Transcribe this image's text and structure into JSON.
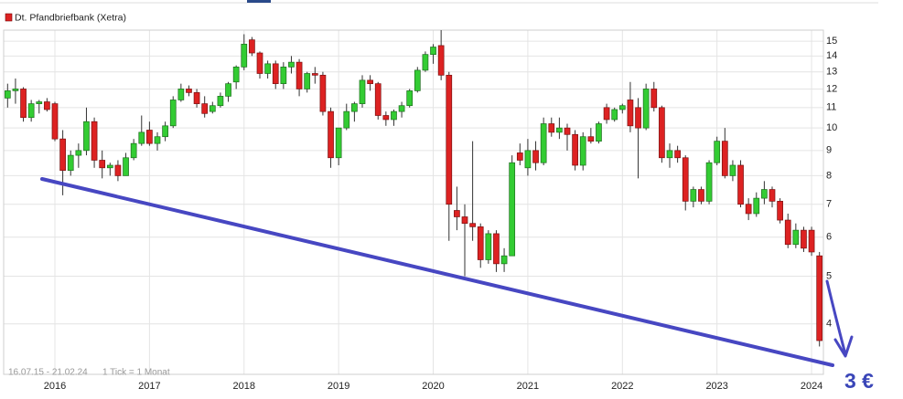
{
  "chart_data": {
    "type": "candlestick",
    "name": "Dt. Pfandbriefbank (Xetra)",
    "footnote_range": "16.07.15 - 21.02.24",
    "footnote_tick": "1 Tick = 1 Monat",
    "annotation": "3 €",
    "up_color": "#33cc33",
    "down_color": "#dd2222",
    "log_scale": true,
    "grid": true,
    "ylim": [
      3.16,
      15.8
    ],
    "yticks": [
      4,
      5,
      6,
      7,
      8,
      9,
      10,
      11,
      12,
      13,
      14,
      15
    ],
    "categories": [
      null,
      null,
      null,
      null,
      null,
      null,
      "2016",
      null,
      null,
      null,
      null,
      null,
      null,
      null,
      null,
      null,
      null,
      null,
      "2017",
      null,
      null,
      null,
      null,
      null,
      null,
      null,
      null,
      null,
      null,
      null,
      "2018",
      null,
      null,
      null,
      null,
      null,
      null,
      null,
      null,
      null,
      null,
      null,
      "2019",
      null,
      null,
      null,
      null,
      null,
      null,
      null,
      null,
      null,
      null,
      null,
      "2020",
      null,
      null,
      null,
      null,
      null,
      null,
      null,
      null,
      null,
      null,
      null,
      "2021",
      null,
      null,
      null,
      null,
      null,
      null,
      null,
      null,
      null,
      null,
      null,
      "2022",
      null,
      null,
      null,
      null,
      null,
      null,
      null,
      null,
      null,
      null,
      null,
      "2023",
      null,
      null,
      null,
      null,
      null,
      null,
      null,
      null,
      null,
      null,
      null,
      "2024",
      null
    ],
    "open": [
      11.5,
      11.9,
      12.0,
      10.5,
      11.2,
      11.3,
      11.2,
      9.5,
      8.2,
      8.8,
      9.0,
      10.3,
      8.6,
      8.3,
      8.4,
      8.0,
      8.7,
      9.3,
      9.9,
      9.3,
      9.6,
      10.1,
      11.4,
      12.0,
      11.8,
      11.2,
      10.8,
      11.1,
      11.6,
      12.4,
      13.3,
      15.1,
      14.2,
      12.9,
      13.5,
      12.3,
      13.3,
      13.6,
      12.0,
      12.9,
      12.8,
      10.8,
      8.7,
      10.0,
      10.8,
      11.2,
      12.5,
      12.3,
      10.6,
      10.4,
      10.8,
      11.1,
      11.9,
      13.1,
      14.1,
      14.7,
      12.8,
      6.8,
      6.6,
      6.4,
      6.3,
      5.4,
      6.1,
      5.3,
      5.5,
      8.9,
      8.3,
      9.0,
      8.5,
      10.2,
      9.8,
      10.0,
      9.7,
      8.4,
      9.6,
      9.4,
      11.0,
      10.4,
      10.9,
      11.4,
      11.0,
      10.0,
      12.0,
      11.0,
      8.7,
      9.0,
      8.7,
      7.1,
      7.5,
      7.1,
      8.5,
      9.4,
      8.0,
      8.4,
      7.0,
      6.7,
      7.2,
      7.5,
      7.1,
      6.5,
      5.8,
      6.2,
      6.2,
      5.5
    ],
    "high": [
      12.3,
      12.6,
      12.1,
      11.4,
      11.4,
      11.5,
      11.3,
      9.9,
      9.0,
      9.3,
      11.0,
      10.5,
      9.0,
      8.5,
      8.6,
      8.9,
      9.5,
      10.6,
      10.3,
      9.8,
      10.3,
      11.6,
      12.3,
      12.2,
      12.0,
      11.6,
      11.3,
      11.8,
      12.4,
      13.4,
      15.5,
      15.3,
      14.3,
      13.7,
      13.7,
      13.6,
      14.0,
      13.8,
      13.0,
      13.3,
      13.0,
      11.0,
      10.0,
      11.2,
      11.3,
      12.8,
      12.8,
      12.4,
      10.8,
      10.9,
      11.3,
      12.0,
      13.3,
      14.3,
      14.8,
      15.8,
      13.0,
      7.6,
      7.0,
      9.4,
      6.4,
      6.2,
      6.2,
      5.7,
      8.8,
      9.3,
      9.5,
      9.4,
      10.5,
      10.5,
      10.5,
      10.2,
      9.9,
      9.8,
      10.0,
      10.3,
      11.2,
      11.0,
      11.2,
      12.4,
      11.5,
      12.3,
      12.4,
      11.1,
      9.3,
      9.2,
      8.8,
      7.6,
      7.6,
      8.6,
      9.6,
      10.0,
      8.6,
      8.6,
      7.2,
      7.4,
      7.8,
      7.6,
      7.2,
      6.7,
      6.4,
      6.3,
      6.3,
      5.6
    ],
    "low": [
      11.0,
      11.2,
      10.3,
      10.3,
      10.7,
      10.8,
      9.4,
      7.3,
      8.0,
      8.3,
      8.8,
      8.3,
      7.9,
      8.0,
      7.8,
      8.0,
      8.6,
      9.2,
      9.2,
      9.0,
      9.4,
      10.0,
      11.3,
      11.6,
      11.0,
      10.5,
      10.7,
      11.0,
      11.3,
      12.0,
      13.1,
      14.0,
      12.6,
      12.6,
      12.0,
      12.0,
      12.9,
      11.6,
      11.8,
      12.3,
      10.6,
      8.3,
      8.4,
      9.9,
      10.3,
      11.0,
      11.9,
      10.4,
      10.1,
      10.1,
      10.5,
      11.0,
      11.8,
      13.0,
      13.5,
      12.5,
      5.9,
      6.2,
      5.0,
      5.9,
      5.2,
      5.3,
      5.1,
      5.1,
      5.5,
      8.4,
      8.0,
      8.2,
      8.4,
      9.6,
      9.5,
      9.0,
      8.2,
      8.2,
      9.3,
      9.3,
      10.2,
      10.3,
      10.7,
      9.8,
      7.9,
      9.9,
      10.8,
      8.5,
      8.3,
      8.5,
      6.8,
      6.9,
      7.0,
      7.0,
      8.4,
      7.9,
      7.8,
      6.9,
      6.5,
      6.6,
      7.0,
      6.9,
      6.4,
      5.7,
      5.7,
      5.6,
      5.5,
      3.6
    ],
    "close": [
      11.9,
      12.0,
      10.5,
      11.2,
      11.3,
      10.9,
      9.5,
      8.2,
      8.8,
      9.0,
      10.3,
      8.6,
      8.3,
      8.4,
      8.0,
      8.7,
      9.3,
      9.8,
      9.3,
      9.6,
      10.1,
      11.4,
      12.0,
      11.8,
      11.2,
      10.7,
      11.1,
      11.6,
      12.3,
      13.3,
      14.8,
      14.2,
      12.9,
      13.5,
      12.3,
      13.3,
      13.6,
      12.0,
      12.9,
      12.8,
      10.8,
      8.7,
      10.0,
      10.8,
      11.2,
      12.5,
      12.3,
      10.6,
      10.4,
      10.8,
      11.1,
      11.9,
      13.1,
      14.1,
      14.6,
      12.8,
      7.0,
      6.6,
      6.4,
      6.3,
      5.4,
      6.1,
      5.3,
      5.5,
      8.5,
      8.6,
      9.0,
      8.5,
      10.2,
      9.8,
      10.0,
      9.7,
      8.4,
      9.6,
      9.4,
      10.2,
      10.4,
      10.9,
      11.1,
      10.1,
      10.0,
      12.0,
      11.0,
      8.7,
      9.0,
      8.7,
      7.1,
      7.5,
      7.1,
      8.5,
      9.4,
      8.0,
      8.4,
      7.0,
      6.7,
      7.2,
      7.5,
      7.1,
      6.5,
      5.8,
      6.2,
      5.7,
      5.6,
      3.7
    ]
  }
}
